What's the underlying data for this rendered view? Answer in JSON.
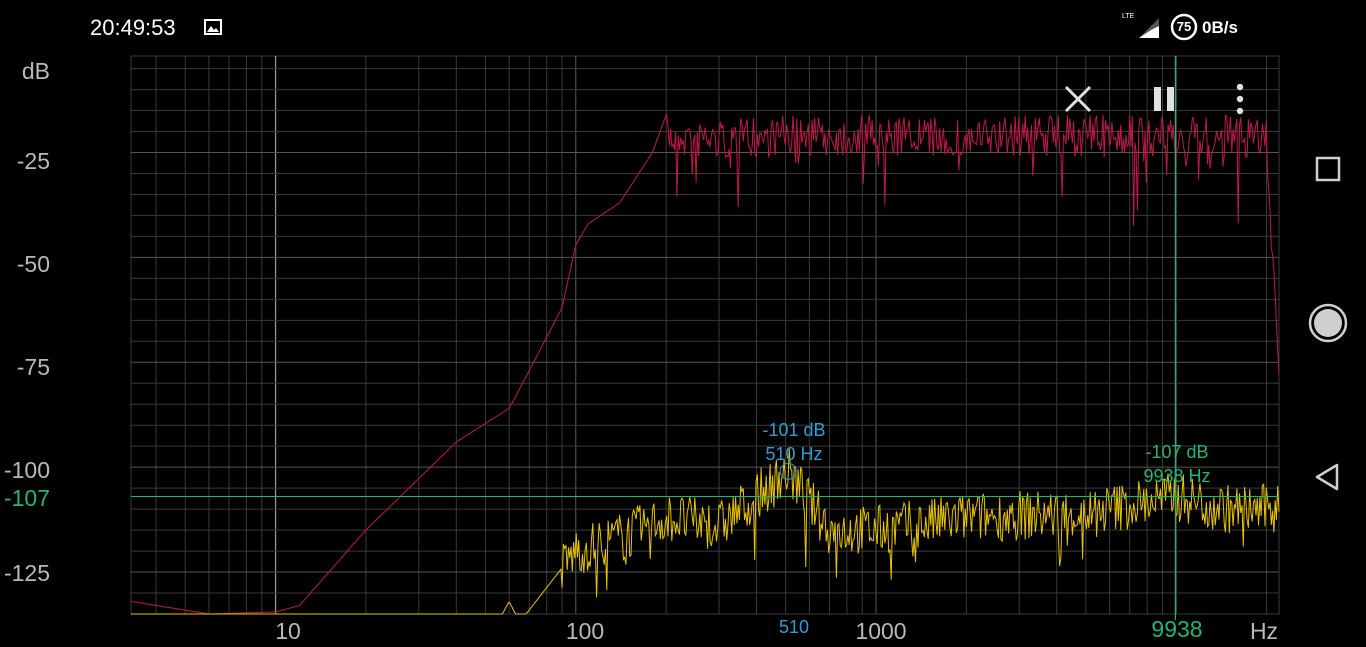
{
  "status_bar": {
    "time": "20:49:53",
    "network_type": "LTE",
    "battery": "75",
    "net_speed": "0B/s",
    "icons": [
      "gallery-icon",
      "signal-icon",
      "battery-icon"
    ]
  },
  "toolbar": {
    "icons": [
      "close-icon",
      "pause-icon",
      "more-vert-icon"
    ]
  },
  "nav_bar": {
    "icons": [
      "recents-icon",
      "home-icon",
      "back-icon"
    ]
  },
  "plot": {
    "y_unit": "dB",
    "x_unit": "Hz",
    "y_ticks": [
      "-25",
      "-50",
      "-75",
      "-100",
      "-125"
    ],
    "x_ticks": [
      "10",
      "100",
      "1000"
    ],
    "cursor": {
      "db_value": "-107",
      "db_label": "-107 dB",
      "hz_label": "9938 Hz",
      "x_readout": "9938",
      "color": "#22b573"
    },
    "peak": {
      "db_label": "-101 dB",
      "hz_label": "510 Hz",
      "x_readout": "510",
      "color": "#2a9fd6"
    },
    "colors": {
      "peak_hold": "#c0184a",
      "current": "#e8c400",
      "grid": "#3a3a3a"
    }
  },
  "chart_data": {
    "type": "line",
    "x_scale": "log",
    "xlim": [
      3.3,
      22000
    ],
    "ylim": [
      -135,
      -2
    ],
    "xlabel": "Hz",
    "ylabel": "dB",
    "series": [
      {
        "x": [
          3.3,
          6,
          10,
          12,
          20,
          40,
          60,
          70,
          90,
          100,
          110,
          140,
          180,
          200,
          300,
          500,
          1000,
          2000,
          3000,
          5000,
          8000,
          10000,
          15000,
          20000,
          22000
        ],
        "y": [
          -132,
          -135,
          -134.5,
          -133,
          -115,
          -94,
          -86,
          -77,
          -62,
          -47,
          -42,
          -37,
          -25,
          -16,
          -17,
          -16,
          -16,
          -17,
          -16,
          -16,
          -16,
          -17,
          -16,
          -17,
          -78
        ]
      },
      {
        "x": [
          3.3,
          10,
          30,
          55,
          60,
          65,
          90,
          100,
          150,
          200,
          300,
          510,
          700,
          1000,
          2000,
          5000,
          9938,
          15000,
          20000,
          22000
        ],
        "y": [
          -137,
          -138,
          -138,
          -137,
          -132,
          -137,
          -124,
          -120,
          -116,
          -112,
          -114,
          -101,
          -115,
          -115,
          -112,
          -111,
          -107,
          -110,
          -110,
          -108
        ]
      }
    ]
  }
}
